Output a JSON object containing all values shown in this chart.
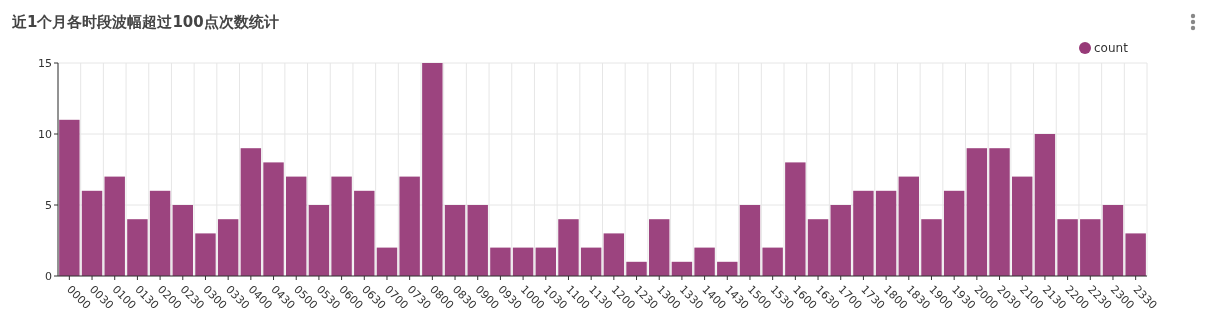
{
  "chart_data": {
    "type": "bar",
    "title": "近1个月各时段波幅超过100点次数统计",
    "categories": [
      "0000",
      "0030",
      "0100",
      "0130",
      "0200",
      "0230",
      "0300",
      "0330",
      "0400",
      "0430",
      "0500",
      "0530",
      "0600",
      "0630",
      "0700",
      "0730",
      "0800",
      "0830",
      "0900",
      "0930",
      "1000",
      "1030",
      "1100",
      "1130",
      "1200",
      "1230",
      "1300",
      "1330",
      "1400",
      "1430",
      "1500",
      "1530",
      "1600",
      "1630",
      "1700",
      "1730",
      "1800",
      "1830",
      "1900",
      "1930",
      "2000",
      "2030",
      "2100",
      "2130",
      "2200",
      "2230",
      "2300",
      "2330"
    ],
    "series": [
      {
        "name": "count",
        "color": "#973a78",
        "values": [
          11,
          6,
          7,
          4,
          6,
          5,
          3,
          4,
          9,
          8,
          7,
          5,
          7,
          6,
          2,
          7,
          15,
          5,
          5,
          2,
          2,
          2,
          4,
          2,
          3,
          1,
          4,
          1,
          2,
          1,
          5,
          2,
          8,
          4,
          5,
          6,
          6,
          7,
          4,
          6,
          9,
          9,
          7,
          10,
          4,
          4,
          5,
          3
        ]
      }
    ],
    "ylim": [
      0,
      15
    ],
    "yticks": [
      0,
      5,
      10,
      15
    ],
    "grid": true,
    "legend": "top right"
  }
}
